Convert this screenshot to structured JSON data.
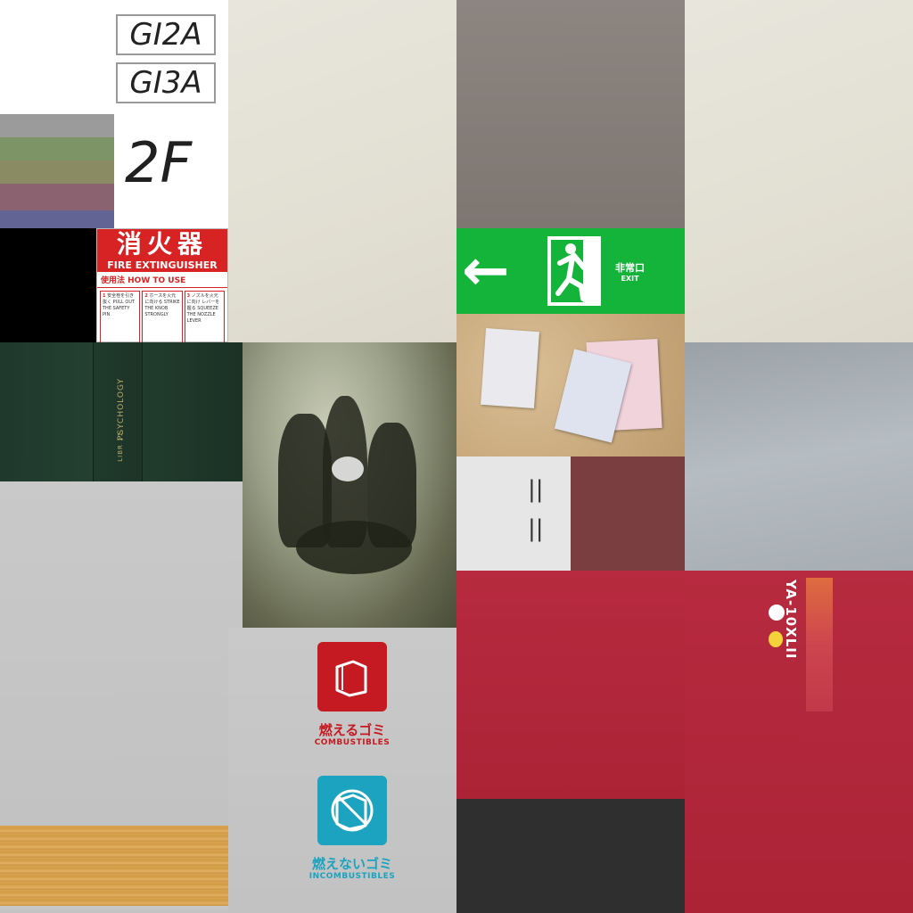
{
  "room_labels": [
    "GI2A",
    "GI3A"
  ],
  "floor_label": "2F",
  "color_stripes": [
    "#9b9b9b",
    "#7d9467",
    "#8a8b63",
    "#8a6270",
    "#626494"
  ],
  "fire_extinguisher": {
    "title_jp": "消火器",
    "title_en": "FIRE EXTINGUISHER",
    "howto": "使用法 HOW TO USE",
    "steps": [
      {
        "num": "1",
        "text": "安全栓を引き抜く PULL OUT THE SAFETY PIN"
      },
      {
        "num": "2",
        "text": "ホースを火元に向ける STRIKE THE KNOB STRONGLY"
      },
      {
        "num": "3",
        "text": "ノズルを火元に向け レバーを握る SQUEEZE THE NOZZLE LEVER"
      }
    ]
  },
  "exit_sign": {
    "arrow": "←",
    "label_jp": "非常口",
    "label_en": "EXIT",
    "color": "#14b33a"
  },
  "book": {
    "spine_title": "PSYCHOLOGY",
    "spine_sub": "LIBR 11"
  },
  "trash_combustible": {
    "label_jp": "燃えるゴミ",
    "label_en": "COMBUSTIBLES",
    "color": "#c61a22",
    "icon": "paper-icon"
  },
  "trash_incombustible": {
    "label_jp": "燃えないゴミ",
    "label_en": "INCOMBUSTIBLES",
    "color": "#1ca3bf",
    "icon": "no-paper-icon"
  },
  "door_marks": [
    "||",
    "||"
  ],
  "vertical_label": "YA-10XLII",
  "colors": {
    "red_wall": "#b72a3f",
    "dark_strip": "#2f2f2f",
    "maroon": "#7a3d40"
  }
}
